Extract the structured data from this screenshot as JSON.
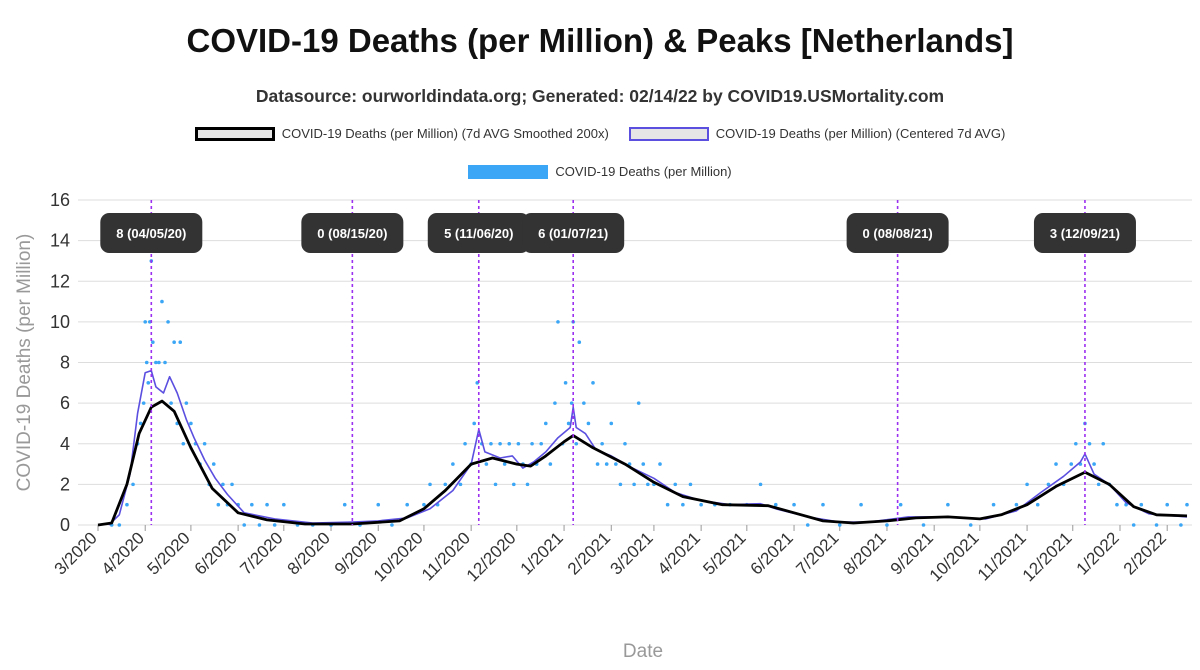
{
  "page": {
    "title": "COVID-19 Deaths (per Million) & Peaks [Netherlands]",
    "subtitle": "Datasource: ourworldindata.org; Generated: 02/14/22 by COVID19.USMortality.com"
  },
  "legend": [
    {
      "label": "COVID-19 Deaths (per Million) (7d AVG Smoothed 200x)",
      "color": "#000000",
      "fill": "#e6e6e6"
    },
    {
      "label": "COVID-19 Deaths (per Million) (Centered 7d AVG)",
      "color": "#5b4fe0",
      "fill": "#e6e6e6"
    },
    {
      "label": "COVID-19 Deaths (per Million)",
      "color": "#3aa6f5",
      "fill": "#3aa6f5"
    }
  ],
  "chart_data": {
    "type": "line",
    "xlabel": "Date",
    "ylabel": "COVID-19 Deaths (per Million)",
    "ylim": [
      0,
      16
    ],
    "yticks": [
      "0",
      "2",
      "4",
      "6",
      "8",
      "10",
      "12",
      "14",
      "16"
    ],
    "xticks": [
      "3/2020",
      "4/2020",
      "5/2020",
      "6/2020",
      "7/2020",
      "8/2020",
      "9/2020",
      "10/2020",
      "11/2020",
      "12/2020",
      "1/2021",
      "2/2021",
      "3/2021",
      "4/2021",
      "5/2021",
      "6/2021",
      "7/2021",
      "8/2021",
      "9/2021",
      "10/2021",
      "11/2021",
      "12/2021",
      "1/2022",
      "2/2022"
    ],
    "x_range": [
      "2020-03-01",
      "2022-02-14"
    ],
    "grid": true,
    "legend_position": "top",
    "series": [
      {
        "name": "COVID-19 Deaths (per Million) (7d AVG Smoothed 200x)",
        "color": "#000000",
        "points": [
          [
            "2020-03-01",
            0
          ],
          [
            "2020-03-10",
            0.1
          ],
          [
            "2020-03-20",
            2.0
          ],
          [
            "2020-03-28",
            4.5
          ],
          [
            "2020-04-05",
            5.8
          ],
          [
            "2020-04-12",
            6.1
          ],
          [
            "2020-04-20",
            5.6
          ],
          [
            "2020-05-01",
            3.8
          ],
          [
            "2020-05-15",
            1.8
          ],
          [
            "2020-06-01",
            0.6
          ],
          [
            "2020-06-20",
            0.25
          ],
          [
            "2020-07-15",
            0.05
          ],
          [
            "2020-08-15",
            0.05
          ],
          [
            "2020-09-15",
            0.2
          ],
          [
            "2020-10-01",
            0.8
          ],
          [
            "2020-10-15",
            1.7
          ],
          [
            "2020-11-01",
            3.0
          ],
          [
            "2020-11-15",
            3.3
          ],
          [
            "2020-12-01",
            3.0
          ],
          [
            "2020-12-10",
            2.9
          ],
          [
            "2020-12-20",
            3.4
          ],
          [
            "2021-01-01",
            4.1
          ],
          [
            "2021-01-07",
            4.4
          ],
          [
            "2021-01-20",
            3.8
          ],
          [
            "2021-02-10",
            3.0
          ],
          [
            "2021-03-01",
            2.1
          ],
          [
            "2021-03-20",
            1.4
          ],
          [
            "2021-04-15",
            1.0
          ],
          [
            "2021-05-15",
            0.95
          ],
          [
            "2021-06-01",
            0.6
          ],
          [
            "2021-06-20",
            0.2
          ],
          [
            "2021-07-10",
            0.1
          ],
          [
            "2021-08-01",
            0.2
          ],
          [
            "2021-08-20",
            0.35
          ],
          [
            "2021-09-10",
            0.4
          ],
          [
            "2021-10-01",
            0.3
          ],
          [
            "2021-10-15",
            0.5
          ],
          [
            "2021-11-01",
            1.0
          ],
          [
            "2021-11-20",
            1.9
          ],
          [
            "2021-12-09",
            2.6
          ],
          [
            "2021-12-25",
            2.0
          ],
          [
            "2022-01-10",
            0.9
          ],
          [
            "2022-01-25",
            0.5
          ],
          [
            "2022-02-14",
            0.45
          ]
        ]
      },
      {
        "name": "COVID-19 Deaths (per Million) (Centered 7d AVG)",
        "color": "#5b4fe0",
        "points": [
          [
            "2020-03-08",
            0
          ],
          [
            "2020-03-15",
            0.5
          ],
          [
            "2020-03-22",
            2.5
          ],
          [
            "2020-03-27",
            5.5
          ],
          [
            "2020-04-01",
            7.5
          ],
          [
            "2020-04-05",
            7.6
          ],
          [
            "2020-04-08",
            6.8
          ],
          [
            "2020-04-13",
            6.5
          ],
          [
            "2020-04-17",
            7.3
          ],
          [
            "2020-04-22",
            6.5
          ],
          [
            "2020-04-28",
            5.2
          ],
          [
            "2020-05-03",
            4.3
          ],
          [
            "2020-05-10",
            3.2
          ],
          [
            "2020-05-17",
            2.3
          ],
          [
            "2020-05-25",
            1.5
          ],
          [
            "2020-06-05",
            0.6
          ],
          [
            "2020-06-25",
            0.3
          ],
          [
            "2020-07-20",
            0.1
          ],
          [
            "2020-08-15",
            0.15
          ],
          [
            "2020-09-01",
            0.2
          ],
          [
            "2020-09-20",
            0.35
          ],
          [
            "2020-10-05",
            0.8
          ],
          [
            "2020-10-20",
            1.7
          ],
          [
            "2020-11-01",
            3.0
          ],
          [
            "2020-11-06",
            4.7
          ],
          [
            "2020-11-10",
            3.6
          ],
          [
            "2020-11-20",
            3.3
          ],
          [
            "2020-11-28",
            3.4
          ],
          [
            "2020-12-05",
            2.8
          ],
          [
            "2020-12-12",
            3.1
          ],
          [
            "2020-12-20",
            3.6
          ],
          [
            "2020-12-28",
            4.3
          ],
          [
            "2021-01-05",
            4.8
          ],
          [
            "2021-01-07",
            5.8
          ],
          [
            "2021-01-09",
            4.8
          ],
          [
            "2021-01-15",
            4.5
          ],
          [
            "2021-01-22",
            3.7
          ],
          [
            "2021-02-01",
            3.4
          ],
          [
            "2021-02-15",
            2.8
          ],
          [
            "2021-03-01",
            2.3
          ],
          [
            "2021-03-15",
            1.6
          ],
          [
            "2021-04-01",
            1.2
          ],
          [
            "2021-04-20",
            1.0
          ],
          [
            "2021-05-10",
            1.05
          ],
          [
            "2021-05-20",
            0.8
          ],
          [
            "2021-06-10",
            0.4
          ],
          [
            "2021-07-01",
            0.15
          ],
          [
            "2021-07-20",
            0.15
          ],
          [
            "2021-08-15",
            0.4
          ],
          [
            "2021-09-10",
            0.4
          ],
          [
            "2021-10-05",
            0.3
          ],
          [
            "2021-10-25",
            0.7
          ],
          [
            "2021-11-10",
            1.6
          ],
          [
            "2021-11-25",
            2.4
          ],
          [
            "2021-12-06",
            3.1
          ],
          [
            "2021-12-09",
            3.5
          ],
          [
            "2021-12-15",
            2.5
          ],
          [
            "2021-12-25",
            2.0
          ],
          [
            "2022-01-05",
            1.1
          ],
          [
            "2022-01-20",
            0.55
          ],
          [
            "2022-02-14",
            0.4
          ]
        ]
      },
      {
        "name": "COVID-19 Deaths (per Million)",
        "color": "#3aa6f5",
        "points": [
          [
            "2020-03-10",
            0
          ],
          [
            "2020-03-15",
            0
          ],
          [
            "2020-03-20",
            1
          ],
          [
            "2020-03-24",
            2
          ],
          [
            "2020-03-27",
            4
          ],
          [
            "2020-03-29",
            5
          ],
          [
            "2020-03-31",
            6
          ],
          [
            "2020-04-01",
            10
          ],
          [
            "2020-04-02",
            8
          ],
          [
            "2020-04-03",
            7
          ],
          [
            "2020-04-04",
            10
          ],
          [
            "2020-04-05",
            13
          ],
          [
            "2020-04-06",
            9
          ],
          [
            "2020-04-08",
            8
          ],
          [
            "2020-04-10",
            8
          ],
          [
            "2020-04-12",
            11
          ],
          [
            "2020-04-14",
            8
          ],
          [
            "2020-04-16",
            10
          ],
          [
            "2020-04-18",
            6
          ],
          [
            "2020-04-20",
            9
          ],
          [
            "2020-04-22",
            5
          ],
          [
            "2020-04-24",
            9
          ],
          [
            "2020-04-26",
            4
          ],
          [
            "2020-04-28",
            6
          ],
          [
            "2020-05-01",
            5
          ],
          [
            "2020-05-04",
            4
          ],
          [
            "2020-05-07",
            3
          ],
          [
            "2020-05-10",
            4
          ],
          [
            "2020-05-13",
            2
          ],
          [
            "2020-05-16",
            3
          ],
          [
            "2020-05-19",
            1
          ],
          [
            "2020-05-22",
            2
          ],
          [
            "2020-05-25",
            1
          ],
          [
            "2020-05-28",
            2
          ],
          [
            "2020-06-01",
            1
          ],
          [
            "2020-06-05",
            0
          ],
          [
            "2020-06-10",
            1
          ],
          [
            "2020-06-15",
            0
          ],
          [
            "2020-06-20",
            1
          ],
          [
            "2020-06-25",
            0
          ],
          [
            "2020-07-01",
            1
          ],
          [
            "2020-07-10",
            0
          ],
          [
            "2020-07-20",
            0
          ],
          [
            "2020-08-01",
            0
          ],
          [
            "2020-08-10",
            1
          ],
          [
            "2020-08-20",
            0
          ],
          [
            "2020-09-01",
            1
          ],
          [
            "2020-09-10",
            0
          ],
          [
            "2020-09-20",
            1
          ],
          [
            "2020-10-01",
            1
          ],
          [
            "2020-10-05",
            2
          ],
          [
            "2020-10-10",
            1
          ],
          [
            "2020-10-15",
            2
          ],
          [
            "2020-10-20",
            3
          ],
          [
            "2020-10-25",
            2
          ],
          [
            "2020-10-28",
            4
          ],
          [
            "2020-11-01",
            3
          ],
          [
            "2020-11-03",
            5
          ],
          [
            "2020-11-05",
            7
          ],
          [
            "2020-11-08",
            4
          ],
          [
            "2020-11-11",
            3
          ],
          [
            "2020-11-14",
            4
          ],
          [
            "2020-11-17",
            2
          ],
          [
            "2020-11-20",
            4
          ],
          [
            "2020-11-23",
            3
          ],
          [
            "2020-11-26",
            4
          ],
          [
            "2020-11-29",
            2
          ],
          [
            "2020-12-02",
            4
          ],
          [
            "2020-12-05",
            3
          ],
          [
            "2020-12-08",
            2
          ],
          [
            "2020-12-11",
            4
          ],
          [
            "2020-12-14",
            3
          ],
          [
            "2020-12-17",
            4
          ],
          [
            "2020-12-20",
            5
          ],
          [
            "2020-12-23",
            3
          ],
          [
            "2020-12-26",
            6
          ],
          [
            "2020-12-28",
            10
          ],
          [
            "2020-12-31",
            4
          ],
          [
            "2021-01-02",
            7
          ],
          [
            "2021-01-04",
            5
          ],
          [
            "2021-01-06",
            6
          ],
          [
            "2021-01-07",
            10
          ],
          [
            "2021-01-09",
            4
          ],
          [
            "2021-01-11",
            9
          ],
          [
            "2021-01-14",
            6
          ],
          [
            "2021-01-17",
            5
          ],
          [
            "2021-01-20",
            7
          ],
          [
            "2021-01-23",
            3
          ],
          [
            "2021-01-26",
            4
          ],
          [
            "2021-01-29",
            3
          ],
          [
            "2021-02-01",
            5
          ],
          [
            "2021-02-04",
            3
          ],
          [
            "2021-02-07",
            2
          ],
          [
            "2021-02-10",
            4
          ],
          [
            "2021-02-13",
            3
          ],
          [
            "2021-02-16",
            2
          ],
          [
            "2021-02-19",
            6
          ],
          [
            "2021-02-22",
            3
          ],
          [
            "2021-02-25",
            2
          ],
          [
            "2021-03-01",
            2
          ],
          [
            "2021-03-05",
            3
          ],
          [
            "2021-03-10",
            1
          ],
          [
            "2021-03-15",
            2
          ],
          [
            "2021-03-20",
            1
          ],
          [
            "2021-03-25",
            2
          ],
          [
            "2021-04-01",
            1
          ],
          [
            "2021-04-10",
            1
          ],
          [
            "2021-04-20",
            1
          ],
          [
            "2021-05-01",
            1
          ],
          [
            "2021-05-10",
            2
          ],
          [
            "2021-05-20",
            1
          ],
          [
            "2021-06-01",
            1
          ],
          [
            "2021-06-10",
            0
          ],
          [
            "2021-06-20",
            1
          ],
          [
            "2021-07-01",
            0
          ],
          [
            "2021-07-15",
            1
          ],
          [
            "2021-08-01",
            0
          ],
          [
            "2021-08-10",
            1
          ],
          [
            "2021-08-25",
            0
          ],
          [
            "2021-09-10",
            1
          ],
          [
            "2021-09-25",
            0
          ],
          [
            "2021-10-10",
            1
          ],
          [
            "2021-10-25",
            1
          ],
          [
            "2021-11-01",
            2
          ],
          [
            "2021-11-08",
            1
          ],
          [
            "2021-11-15",
            2
          ],
          [
            "2021-11-20",
            3
          ],
          [
            "2021-11-25",
            2
          ],
          [
            "2021-11-30",
            3
          ],
          [
            "2021-12-03",
            4
          ],
          [
            "2021-12-06",
            3
          ],
          [
            "2021-12-09",
            5
          ],
          [
            "2021-12-12",
            4
          ],
          [
            "2021-12-15",
            3
          ],
          [
            "2021-12-18",
            2
          ],
          [
            "2021-12-21",
            4
          ],
          [
            "2021-12-25",
            2
          ],
          [
            "2021-12-30",
            1
          ],
          [
            "2022-01-05",
            1
          ],
          [
            "2022-01-10",
            0
          ],
          [
            "2022-01-15",
            1
          ],
          [
            "2022-01-25",
            0
          ],
          [
            "2022-02-01",
            1
          ],
          [
            "2022-02-10",
            0
          ],
          [
            "2022-02-14",
            1
          ]
        ]
      }
    ],
    "peaks": [
      {
        "date": "2020-04-05",
        "label": "8 (04/05/20)"
      },
      {
        "date": "2020-08-15",
        "label": "0 (08/15/20)"
      },
      {
        "date": "2020-11-06",
        "label": "5 (11/06/20)"
      },
      {
        "date": "2021-01-07",
        "label": "6 (01/07/21)"
      },
      {
        "date": "2021-08-08",
        "label": "0 (08/08/21)"
      },
      {
        "date": "2021-12-09",
        "label": "3 (12/09/21)"
      }
    ],
    "peak_line_color": "#9b30f0",
    "peak_box_color": "#333333"
  }
}
